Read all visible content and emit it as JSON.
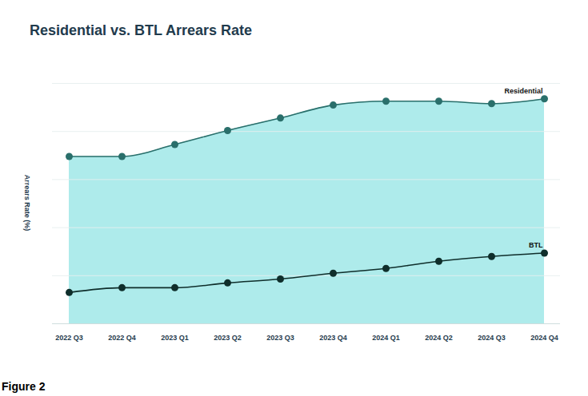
{
  "chart_data": {
    "type": "line",
    "title": "Residential vs. BTL Arrears Rate",
    "y_label": "Arrears Rate (%)",
    "caption": "Figure 2",
    "categories": [
      "2022 Q3",
      "2022 Q4",
      "2023 Q1",
      "2023 Q2",
      "2023 Q3",
      "2023 Q4",
      "2024 Q1",
      "2024 Q2",
      "2024 Q3",
      "2024 Q4"
    ],
    "series": [
      {
        "name": "Residential",
        "type": "area",
        "color": "#2a6f6b",
        "marker": "circle",
        "values": [
          3.48,
          3.48,
          3.73,
          4.02,
          4.28,
          4.55,
          4.63,
          4.63,
          4.58,
          4.68
        ]
      },
      {
        "name": "BTL",
        "type": "line",
        "color": "#0f2e2b",
        "marker": "circle",
        "values": [
          0.65,
          0.75,
          0.75,
          0.85,
          0.93,
          1.05,
          1.15,
          1.3,
          1.4,
          1.47
        ]
      }
    ],
    "ylim": [
      0,
      5
    ],
    "yticks": [
      1,
      2,
      3,
      4,
      5
    ],
    "grid": true,
    "tick_labels": "x"
  }
}
